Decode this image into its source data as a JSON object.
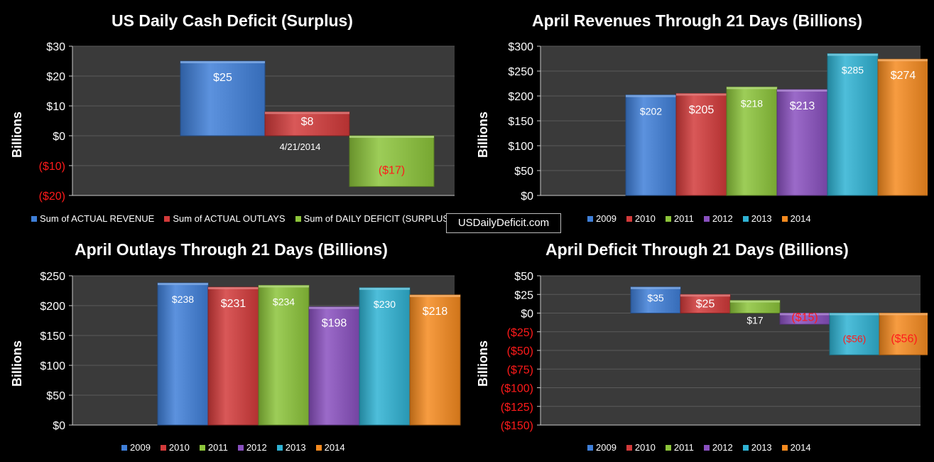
{
  "watermark": "USDailyDeficit.com",
  "colors": {
    "blue": "#3f7fd8",
    "red": "#d23a3a",
    "green": "#8cc43a",
    "purple": "#8950bf",
    "teal": "#2fb2d3",
    "orange": "#f58a1f",
    "plot_bg": "#3a3a3a",
    "grid": "#5a5a5a",
    "negative_text": "#ff1a1a"
  },
  "chart_data": [
    {
      "id": "daily",
      "type": "bar",
      "title": "US Daily Cash Deficit (Surplus)",
      "ylabel": "Billions",
      "ylim": [
        -20,
        30
      ],
      "yticks": [
        30,
        20,
        10,
        0,
        -10,
        -20
      ],
      "ytick_labels": [
        "$30",
        "$20",
        "$10",
        "$0",
        "($10)",
        "($20)"
      ],
      "category_label": "4/21/2014",
      "series": [
        {
          "name": "Sum of ACTUAL REVENUE",
          "value": 25,
          "label": "$25",
          "color": "blue"
        },
        {
          "name": "Sum of ACTUAL OUTLAYS",
          "value": 8,
          "label": "$8",
          "color": "red"
        },
        {
          "name": "Sum of DAILY DEFICIT (SURPLUS)",
          "value": -17,
          "label": "($17)",
          "color": "green"
        }
      ]
    },
    {
      "id": "revenues",
      "type": "bar",
      "title": "April Revenues Through 21 Days (Billions)",
      "ylabel": "Billions",
      "ylim": [
        0,
        300
      ],
      "yticks": [
        300,
        250,
        200,
        150,
        100,
        50,
        0
      ],
      "ytick_labels": [
        "$300",
        "$250",
        "$200",
        "$150",
        "$100",
        "$50",
        "$0"
      ],
      "series": [
        {
          "name": "2009",
          "value": 202,
          "label": "$202",
          "color": "blue"
        },
        {
          "name": "2010",
          "value": 205,
          "label": "$205",
          "color": "red"
        },
        {
          "name": "2011",
          "value": 218,
          "label": "$218",
          "color": "green"
        },
        {
          "name": "2012",
          "value": 213,
          "label": "$213",
          "color": "purple"
        },
        {
          "name": "2013",
          "value": 285,
          "label": "$285",
          "color": "teal"
        },
        {
          "name": "2014",
          "value": 274,
          "label": "$274",
          "color": "orange"
        }
      ]
    },
    {
      "id": "outlays",
      "type": "bar",
      "title": "April Outlays Through 21 Days (Billions)",
      "ylabel": "Billions",
      "ylim": [
        0,
        250
      ],
      "yticks": [
        250,
        200,
        150,
        100,
        50,
        0
      ],
      "ytick_labels": [
        "$250",
        "$200",
        "$150",
        "$100",
        "$50",
        "$0"
      ],
      "series": [
        {
          "name": "2009",
          "value": 238,
          "label": "$238",
          "color": "blue"
        },
        {
          "name": "2010",
          "value": 231,
          "label": "$231",
          "color": "red"
        },
        {
          "name": "2011",
          "value": 234,
          "label": "$234",
          "color": "green"
        },
        {
          "name": "2012",
          "value": 198,
          "label": "$198",
          "color": "purple"
        },
        {
          "name": "2013",
          "value": 230,
          "label": "$230",
          "color": "teal"
        },
        {
          "name": "2014",
          "value": 218,
          "label": "$218",
          "color": "orange"
        }
      ]
    },
    {
      "id": "deficit",
      "type": "bar",
      "title": "April Deficit Through 21 Days (Billions)",
      "ylabel": "Billions",
      "ylim": [
        -150,
        50
      ],
      "yticks": [
        50,
        25,
        0,
        -25,
        -50,
        -75,
        -100,
        -125,
        -150
      ],
      "ytick_labels": [
        "$50",
        "$25",
        "$0",
        "($25)",
        "($50)",
        "($75)",
        "($100)",
        "($125)",
        "($150)"
      ],
      "series": [
        {
          "name": "2009",
          "value": 35,
          "label": "$35",
          "color": "blue"
        },
        {
          "name": "2010",
          "value": 25,
          "label": "$25",
          "color": "red"
        },
        {
          "name": "2011",
          "value": 17,
          "label": "$17",
          "color": "green"
        },
        {
          "name": "2012",
          "value": -15,
          "label": "($15)",
          "color": "purple"
        },
        {
          "name": "2013",
          "value": -56,
          "label": "($56)",
          "color": "teal"
        },
        {
          "name": "2014",
          "value": -56,
          "label": "($56)",
          "color": "orange"
        }
      ]
    }
  ]
}
